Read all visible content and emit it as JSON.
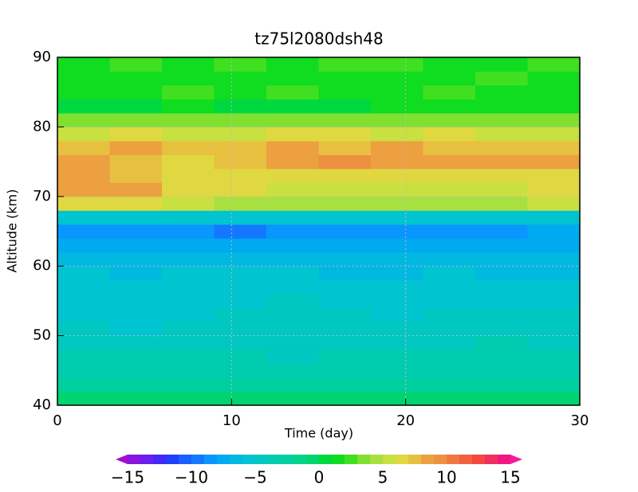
{
  "chart_data": {
    "type": "heatmap",
    "title": "tz75l2080dsh48",
    "xlabel": "Time (day)",
    "ylabel": "Altitude (km)",
    "x": [
      1.5,
      4.5,
      7.5,
      10.5,
      13.5,
      16.5,
      19.5,
      22.5,
      25.5,
      28.5
    ],
    "y": [
      41,
      43,
      45,
      47,
      49,
      51,
      53,
      55,
      57,
      59,
      61,
      63,
      65,
      67,
      69,
      71,
      73,
      75,
      77,
      79,
      81,
      83,
      85,
      87,
      89
    ],
    "z": [
      [
        -1,
        -1,
        -1,
        -1,
        -1,
        -1,
        -1,
        -1,
        -1,
        -1
      ],
      [
        -3,
        -3,
        -3,
        -3,
        -3,
        -3,
        -3,
        -3,
        -3,
        -3
      ],
      [
        -4,
        -4,
        -4,
        -4,
        -4,
        -4,
        -4,
        -3.5,
        -3.5,
        -4
      ],
      [
        -4,
        -4,
        -4,
        -4,
        -4.5,
        -4,
        -4,
        -4,
        -3.5,
        -4
      ],
      [
        -4.5,
        -4.5,
        -4.5,
        -4.5,
        -4.5,
        -4.5,
        -4.5,
        -4.5,
        -4,
        -4.5
      ],
      [
        -4.5,
        -5.5,
        -5,
        -4.5,
        -4.5,
        -4.5,
        -4.5,
        -4.5,
        -4.5,
        -4.5
      ],
      [
        -5.5,
        -5.5,
        -5.5,
        -5,
        -5,
        -5,
        -5.5,
        -5,
        -5,
        -5
      ],
      [
        -5.5,
        -5.5,
        -5.5,
        -5.5,
        -5,
        -5.5,
        -5.5,
        -5.5,
        -5.5,
        -5.5
      ],
      [
        -5.5,
        -5.5,
        -5.5,
        -5.5,
        -6,
        -6,
        -5.5,
        -5.5,
        -5.5,
        -6
      ],
      [
        -6,
        -6.5,
        -6,
        -6,
        -6,
        -6.5,
        -6.5,
        -6,
        -6.5,
        -6.5
      ],
      [
        -6.5,
        -7,
        -7,
        -7,
        -6.5,
        -7,
        -7,
        -7,
        -7,
        -7
      ],
      [
        -7.5,
        -7.5,
        -7.5,
        -7.5,
        -7.5,
        -7.5,
        -7.5,
        -7.5,
        -7.5,
        -7.5
      ],
      [
        -8.5,
        -9,
        -9,
        -9.5,
        -9,
        -9,
        -9,
        -9,
        -8.5,
        -8
      ],
      [
        -5.5,
        -6,
        -6,
        -6,
        -6,
        -6,
        -6,
        -6,
        -6,
        -5.5
      ],
      [
        6.5,
        6,
        5,
        4.5,
        4.5,
        4.5,
        4.5,
        4.5,
        4.5,
        5
      ],
      [
        8.5,
        8,
        6.5,
        6,
        5.5,
        5,
        5.5,
        5.5,
        5.5,
        6
      ],
      [
        8,
        7.5,
        6,
        6.5,
        6,
        6.5,
        6.5,
        6.5,
        6,
        6.5
      ],
      [
        8,
        7,
        6,
        7.5,
        8,
        9,
        8.5,
        8.5,
        8.5,
        8
      ],
      [
        7,
        8,
        7,
        7.5,
        8,
        7.5,
        8.5,
        7.5,
        7.5,
        7
      ],
      [
        5,
        6,
        5.5,
        5.5,
        6,
        6,
        5.5,
        6,
        5.5,
        5.5
      ],
      [
        3,
        3,
        3.5,
        3,
        3,
        3,
        3,
        3,
        3,
        3
      ],
      [
        0.5,
        0,
        1,
        0.5,
        0.5,
        0.5,
        1,
        1,
        1,
        1
      ],
      [
        1.5,
        1.5,
        2,
        1.5,
        2,
        1.5,
        1.5,
        2,
        1.5,
        1.5
      ],
      [
        1,
        1.5,
        1.5,
        1,
        1,
        1.5,
        1.5,
        1,
        2,
        1.5
      ],
      [
        1.5,
        2,
        1.5,
        2,
        1.5,
        2,
        2,
        1.5,
        1.5,
        2
      ]
    ],
    "xlim": [
      0,
      30
    ],
    "xticks": [
      0,
      10,
      20,
      30
    ],
    "ylim": [
      40,
      90
    ],
    "yticks": [
      40,
      50,
      60,
      70,
      80,
      90
    ],
    "grid": true,
    "colorbar": {
      "lim": [
        -15,
        15
      ],
      "ticks": [
        {
          "value": -15,
          "label": "−15"
        },
        {
          "value": -10,
          "label": "−10"
        },
        {
          "value": -5,
          "label": "−5"
        },
        0,
        5,
        10,
        15
      ],
      "colors": [
        "#a010d0",
        "#8a14e0",
        "#6a1ef0",
        "#4428f5",
        "#2040ff",
        "#1860ff",
        "#1478ff",
        "#0a96ff",
        "#00aaf0",
        "#00b8e0",
        "#00c4d0",
        "#00c8c0",
        "#00ccb0",
        "#00d0a0",
        "#00d48c",
        "#00d470",
        "#00d840",
        "#10dc20",
        "#40e020",
        "#80e030",
        "#a8e040",
        "#c8e040",
        "#e0d840",
        "#e8c040",
        "#eca040",
        "#ee9040",
        "#f07840",
        "#f26040",
        "#f44840",
        "#f03060",
        "#f01880",
        "#f0209a"
      ]
    }
  }
}
